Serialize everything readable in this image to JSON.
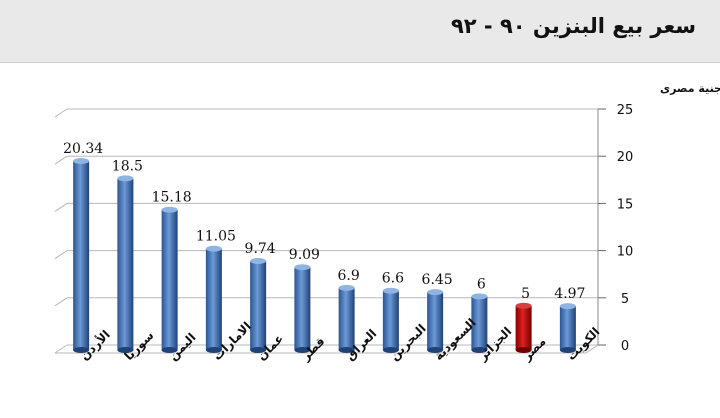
{
  "header": {
    "title": "سعر بيع البنزين ٩٠ - ٩٢"
  },
  "chart_data": {
    "type": "bar",
    "title": "سعر بيع البنزين ٩٠ - ٩٢",
    "ylabel": "جنية مصرى",
    "ylim": [
      0,
      25
    ],
    "yticks": [
      0,
      5,
      10,
      15,
      20,
      25
    ],
    "categories": [
      "الأردن",
      "سوريا",
      "اليمن",
      "الامارات",
      "عمان",
      "قطر",
      "العراق",
      "البحرين",
      "السعودية",
      "الجزائر",
      "مصر",
      "الكويت"
    ],
    "values": [
      20.34,
      18.5,
      15.18,
      11.05,
      9.74,
      9.09,
      6.9,
      6.6,
      6.45,
      6,
      5,
      4.97
    ],
    "value_labels": [
      "20.34",
      "18.5",
      "15.18",
      "11.05",
      "9.74",
      "9.09",
      "6.9",
      "6.6",
      "6.45",
      "6",
      "5",
      "4.97"
    ],
    "highlight_category": "مصر",
    "colors": {
      "bar": "#4a7ebb",
      "highlight": "#c00000",
      "grid": "#b8b8b8"
    },
    "grid": true,
    "legend": "none"
  }
}
